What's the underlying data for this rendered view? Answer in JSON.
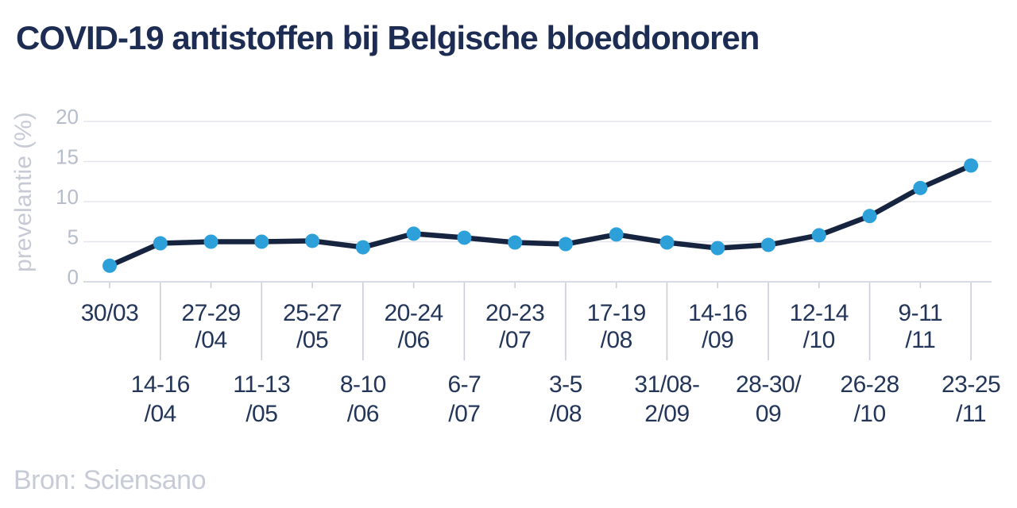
{
  "page": {
    "title": "COVID-19 antistoffen bij Belgische bloeddonoren",
    "source": "Bron: Sciensano"
  },
  "chart_data": {
    "type": "line",
    "title": "COVID-19 antistoffen bij Belgische bloeddonoren",
    "ylabel": "prevelantie (%)",
    "xlabel": "",
    "source": "Bron: Sciensano",
    "ylim": [
      0,
      20
    ],
    "yticks": [
      0,
      5,
      10,
      15,
      20
    ],
    "grid": "horizontal",
    "legend_position": "none",
    "categories": [
      "30/03",
      "14-16/04",
      "27-29/04",
      "11-13/05",
      "25-27/05",
      "8-10/06",
      "20-24/06",
      "6-7/07",
      "20-23/07",
      "3-5/08",
      "17-19/08",
      "31/08-2/09",
      "14-16/09",
      "28-30/09",
      "12-14/10",
      "26-28/10",
      "9-11/11",
      "23-25/11"
    ],
    "category_label_lines": [
      [
        "30/03"
      ],
      [
        "14-16",
        "/04"
      ],
      [
        "27-29",
        "/04"
      ],
      [
        "11-13",
        "/05"
      ],
      [
        "25-27",
        "/05"
      ],
      [
        "8-10",
        "/06"
      ],
      [
        "20-24",
        "/06"
      ],
      [
        "6-7",
        "/07"
      ],
      [
        "20-23",
        "/07"
      ],
      [
        "3-5",
        "/08"
      ],
      [
        "17-19",
        "/08"
      ],
      [
        "31/08-",
        "2/09"
      ],
      [
        "14-16",
        "/09"
      ],
      [
        "28-30/",
        "09"
      ],
      [
        "12-14",
        "/10"
      ],
      [
        "26-28",
        "/10"
      ],
      [
        "9-11",
        "/11"
      ],
      [
        "23-25",
        "/11"
      ]
    ],
    "category_label_row": [
      "top",
      "bottom",
      "top",
      "bottom",
      "top",
      "bottom",
      "top",
      "bottom",
      "top",
      "bottom",
      "top",
      "bottom",
      "top",
      "bottom",
      "top",
      "bottom",
      "top",
      "bottom"
    ],
    "values": [
      2.0,
      4.8,
      5.0,
      5.0,
      5.1,
      4.3,
      6.0,
      5.5,
      4.9,
      4.7,
      5.9,
      4.9,
      4.2,
      4.6,
      5.8,
      8.2,
      11.7,
      14.5
    ],
    "colors": {
      "line": "#172440",
      "marker": "#2d9fd9",
      "title_text": "#1c2c52",
      "x_label_text": "#233659",
      "y_tick_text": "#b6bccb",
      "y_axis_title_text": "#c6cad5",
      "gridline": "#e3e6ec",
      "axis_line": "#c9ced9",
      "source_text": "#c6cbd6"
    }
  }
}
